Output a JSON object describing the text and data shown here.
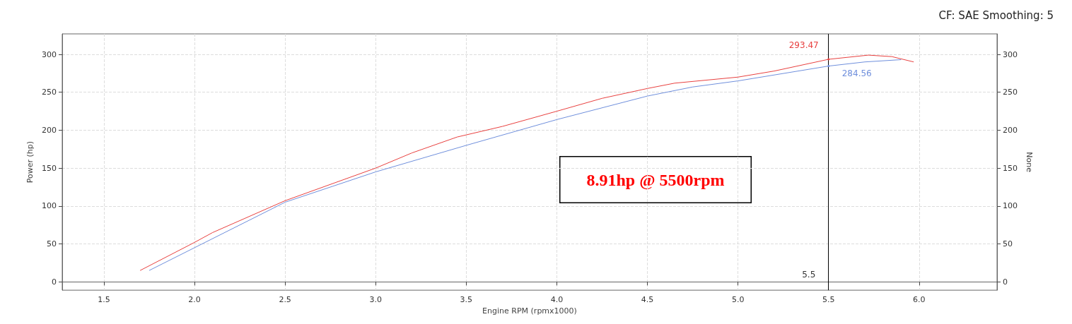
{
  "chart_data": {
    "type": "line",
    "xlabel": "Engine RPM (rpmx1000)",
    "ylabel": "Power (hp)",
    "y2label": "None",
    "xlim": [
      1.27,
      6.43
    ],
    "ylim": [
      -11,
      327
    ],
    "y2lim": [
      -11,
      327
    ],
    "xticks": [
      {
        "value": 1.5,
        "label": "1.5"
      },
      {
        "value": 2,
        "label": "2.0"
      },
      {
        "value": 2.5,
        "label": "2.5"
      },
      {
        "value": 3,
        "label": "3.0"
      },
      {
        "value": 3.5,
        "label": "3.5"
      },
      {
        "value": 4,
        "label": "4.0"
      },
      {
        "value": 4.5,
        "label": "4.5"
      },
      {
        "value": 5,
        "label": "5.0"
      },
      {
        "value": 5.5,
        "label": "5.5"
      },
      {
        "value": 6,
        "label": "6.0"
      }
    ],
    "yticks": [
      0,
      50,
      100,
      150,
      200,
      250,
      300
    ],
    "y2ticks": [
      0,
      50,
      100,
      150,
      200,
      250,
      300
    ],
    "grid": true,
    "marker": "none",
    "line_style": "solid",
    "series": [
      {
        "color": "#e8403f",
        "x": [
          1.7,
          2.0,
          2.1,
          2.5,
          3.0,
          3.2,
          3.45,
          3.7,
          4.0,
          4.25,
          4.5,
          4.65,
          5.0,
          5.2,
          5.5,
          5.72,
          5.85,
          5.97
        ],
        "values": [
          15,
          52,
          65,
          107,
          150,
          170,
          191,
          205,
          225,
          242,
          255,
          262,
          270,
          278,
          293.47,
          299,
          297,
          290
        ]
      },
      {
        "color": "#6f8fdc",
        "x": [
          1.75,
          2.0,
          2.5,
          3.0,
          3.5,
          4.0,
          4.5,
          4.75,
          5.0,
          5.5,
          5.7,
          5.9
        ],
        "values": [
          15,
          45,
          105,
          145,
          180,
          214,
          245,
          257,
          265,
          284.56,
          290,
          293
        ]
      }
    ],
    "ref_lines": [
      {
        "axis": "x",
        "value": 5.5,
        "label": "5.5",
        "color": "#000000"
      }
    ],
    "annotations": [
      {
        "text": "293.47",
        "x": 5.5,
        "y": 293.47
      },
      {
        "text": "284.56",
        "x": 5.5,
        "y": 284.56
      },
      "8.91hp @ 5500rpm",
      "CF: SAE Smoothing: 5"
    ]
  }
}
